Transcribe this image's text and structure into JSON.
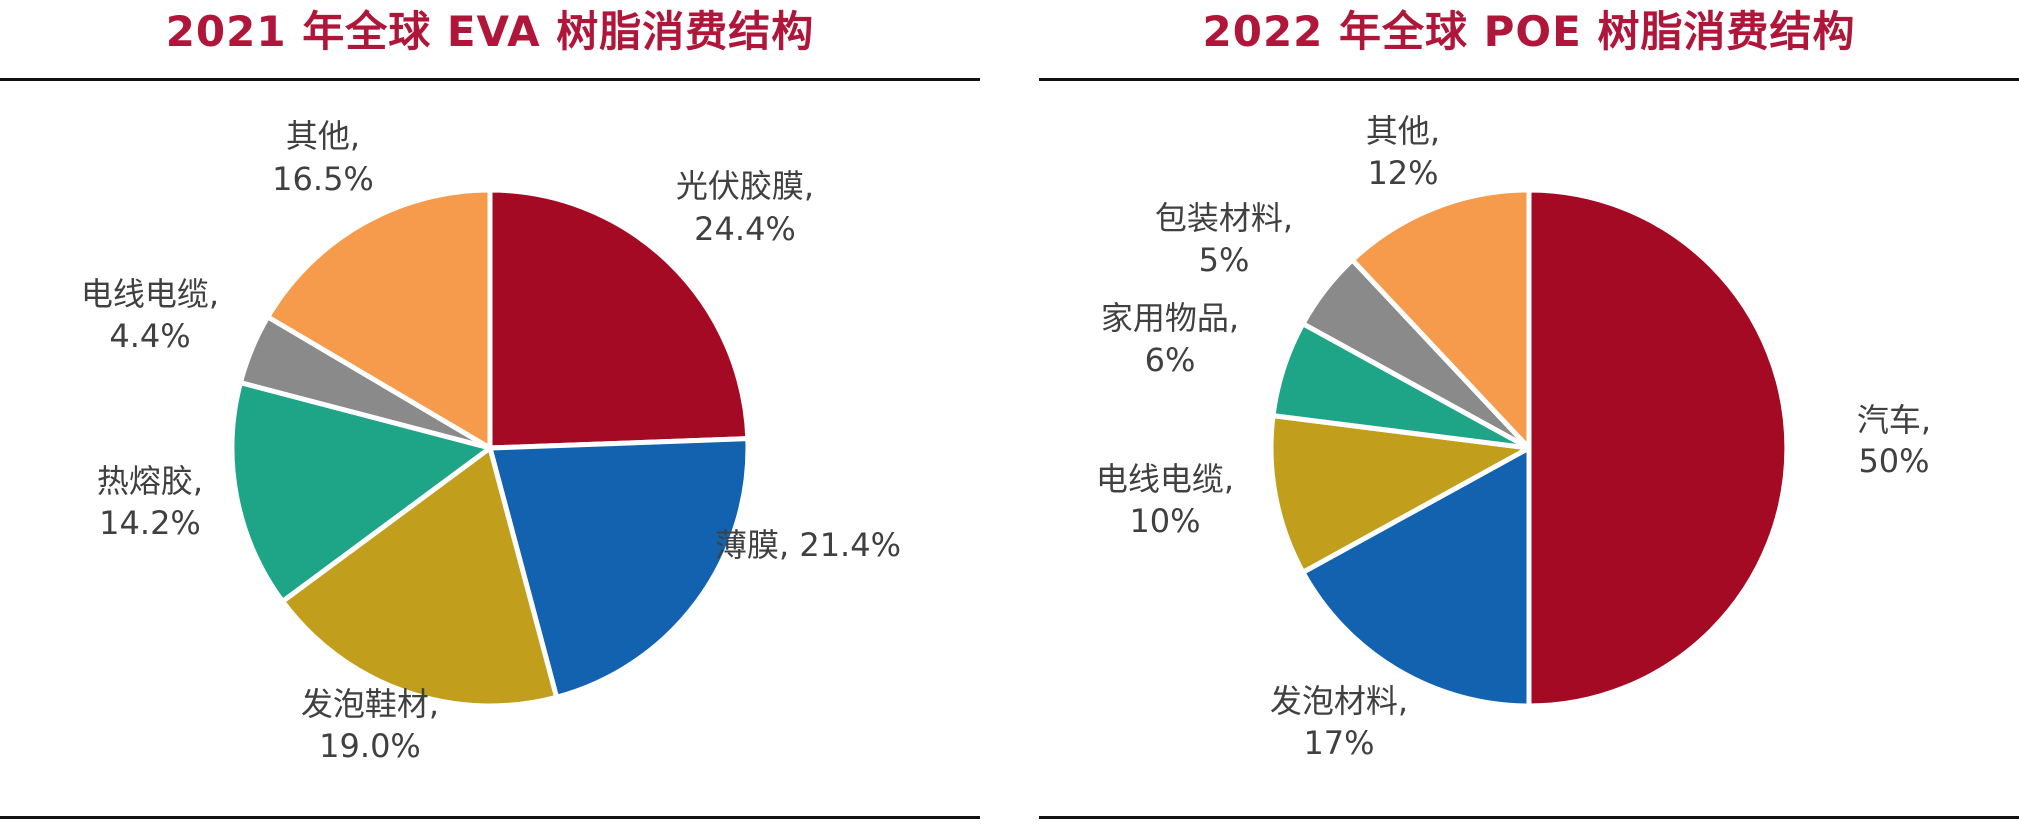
{
  "chart_data": [
    {
      "type": "pie",
      "title": "2021 年全球 EVA 树脂消费结构",
      "series": [
        {
          "name": "光伏胶膜",
          "value": 24.4,
          "label": "24.4%",
          "color": "#a50a24"
        },
        {
          "name": "薄膜",
          "value": 21.4,
          "label": "21.4%",
          "color": "#1262b0"
        },
        {
          "name": "发泡鞋材",
          "value": 19.0,
          "label": "19.0%",
          "color": "#c19f1d"
        },
        {
          "name": "热熔胶",
          "value": 14.2,
          "label": "14.2%",
          "color": "#1ea487"
        },
        {
          "name": "电线电缆",
          "value": 4.4,
          "label": "4.4%",
          "color": "#8a8a8a"
        },
        {
          "name": "其他",
          "value": 16.5,
          "label": "16.5%",
          "color": "#f59b4b"
        }
      ]
    },
    {
      "type": "pie",
      "title": "2022 年全球 POE 树脂消费结构",
      "series": [
        {
          "name": "汽车",
          "value": 50,
          "label": "50%",
          "color": "#a50a24"
        },
        {
          "name": "发泡材料",
          "value": 17,
          "label": "17%",
          "color": "#1262b0"
        },
        {
          "name": "电线电缆",
          "value": 10,
          "label": "10%",
          "color": "#c19f1d"
        },
        {
          "name": "家用物品",
          "value": 6,
          "label": "6%",
          "color": "#1ea487"
        },
        {
          "name": "包装材料",
          "value": 5,
          "label": "5%",
          "color": "#8a8a8a"
        },
        {
          "name": "其他",
          "value": 12,
          "label": "12%",
          "color": "#f59b4b"
        }
      ]
    }
  ]
}
